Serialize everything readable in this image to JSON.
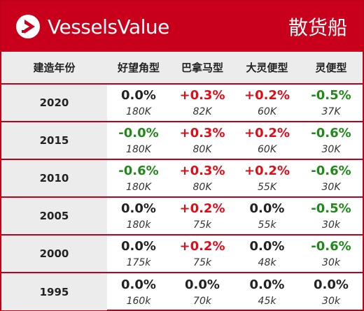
{
  "brand": {
    "name": "VesselsValue",
    "icon": "vesselsvalue-logo-icon"
  },
  "title": "散货船",
  "colors": {
    "accent": "#c8001b",
    "positive": "#e10c17",
    "negative": "#1f8a19",
    "neutral": "#222222"
  },
  "table": {
    "headers": [
      "建造年份",
      "好望角型",
      "巴拿马型",
      "大灵便型",
      "灵便型"
    ],
    "rows": [
      {
        "year": "2020",
        "cells": [
          {
            "pct": "0.0%",
            "val": "180K",
            "tone": "zero"
          },
          {
            "pct": "+0.3%",
            "val": "82K",
            "tone": "pos"
          },
          {
            "pct": "+0.2%",
            "val": "60K",
            "tone": "pos"
          },
          {
            "pct": "-0.5%",
            "val": "37K",
            "tone": "neg"
          }
        ]
      },
      {
        "year": "2015",
        "cells": [
          {
            "pct": "-0.0%",
            "val": "180K",
            "tone": "neg"
          },
          {
            "pct": "+0.3%",
            "val": "80K",
            "tone": "pos"
          },
          {
            "pct": "+0.2%",
            "val": "60K",
            "tone": "pos"
          },
          {
            "pct": "-0.6%",
            "val": "30K",
            "tone": "neg"
          }
        ]
      },
      {
        "year": "2010",
        "cells": [
          {
            "pct": "-0.6%",
            "val": "180K",
            "tone": "neg"
          },
          {
            "pct": "+0.3%",
            "val": "80K",
            "tone": "pos"
          },
          {
            "pct": "+0.2%",
            "val": "55K",
            "tone": "pos"
          },
          {
            "pct": "-0.6%",
            "val": "30K",
            "tone": "neg"
          }
        ]
      },
      {
        "year": "2005",
        "cells": [
          {
            "pct": "0.0%",
            "val": "180k",
            "tone": "zero"
          },
          {
            "pct": "+0.2%",
            "val": "75k",
            "tone": "pos"
          },
          {
            "pct": "0.0%",
            "val": "55k",
            "tone": "zero"
          },
          {
            "pct": "-0.5%",
            "val": "30k",
            "tone": "neg"
          }
        ]
      },
      {
        "year": "2000",
        "cells": [
          {
            "pct": "0.0%",
            "val": "175k",
            "tone": "zero"
          },
          {
            "pct": "+0.2%",
            "val": "75k",
            "tone": "pos"
          },
          {
            "pct": "0.0%",
            "val": "48k",
            "tone": "zero"
          },
          {
            "pct": "-0.6%",
            "val": "30k",
            "tone": "neg"
          }
        ]
      },
      {
        "year": "1995",
        "cells": [
          {
            "pct": "0.0%",
            "val": "160k",
            "tone": "zero"
          },
          {
            "pct": "0.0%",
            "val": "70k",
            "tone": "zero"
          },
          {
            "pct": "0.0%",
            "val": "45k",
            "tone": "zero"
          },
          {
            "pct": "0.0%",
            "val": "30k",
            "tone": "zero"
          }
        ]
      }
    ]
  }
}
